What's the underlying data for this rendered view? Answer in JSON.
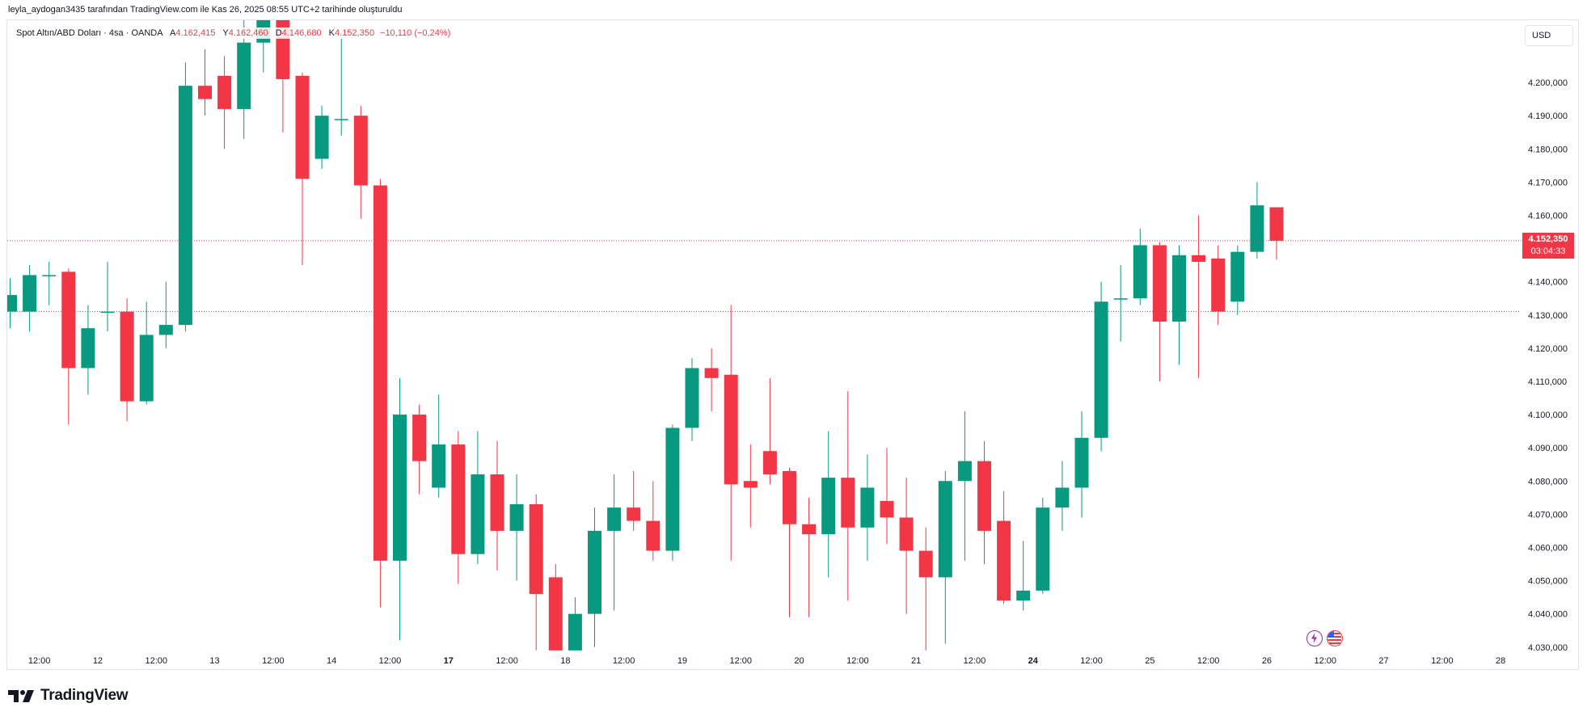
{
  "header": {
    "credit": "leyla_aydogan3435 tarafından TradingView.com ile Kas 26, 2025 08:55 UTC+2 tarihinde oluşturuldu"
  },
  "legend": {
    "symbol": "Spot Altın/ABD Doları · 4sa · OANDA",
    "open_label": "A",
    "open_value": "4.162,415",
    "high_label": "Y",
    "high_value": "4.162,460",
    "low_label": "D",
    "low_value": "4.146,680",
    "close_label": "K",
    "close_value": "4.152,350",
    "change": "−10,110 (−0,24%)"
  },
  "toolbar": {
    "currency": "USD"
  },
  "price_tag": {
    "price": "4.152,350",
    "countdown": "03:04:33"
  },
  "branding": {
    "name": "TradingView"
  },
  "icons": [
    "flash-icon",
    "us-flag-icon"
  ],
  "colors": {
    "up": "#089981",
    "down": "#f23645",
    "last_price_line": "#f23645",
    "ref_line": "#089981",
    "text": "#131722",
    "border": "#e0e3eb"
  },
  "chart_data": {
    "type": "candlestick",
    "series_title": "Spot Altın/ABD Doları · 4sa · OANDA",
    "currency": "USD",
    "ylim": [
      4025,
      4215
    ],
    "y_ticks": [
      4030,
      4040,
      4050,
      4060,
      4070,
      4080,
      4090,
      4100,
      4110,
      4120,
      4130,
      4140,
      4150,
      4160,
      4170,
      4180,
      4190,
      4200
    ],
    "y_tick_labels": [
      "4.030,000",
      "4.040,000",
      "4.050,000",
      "4.060,000",
      "4.070,000",
      "4.080,000",
      "4.090,000",
      "4.100,000",
      "4.110,000",
      "4.120,000",
      "4.130,000",
      "4.140,000",
      "4.150,000",
      "4.160,000",
      "4.170,000",
      "4.180,000",
      "4.190,000",
      "4.200,000"
    ],
    "x_tick_labels": [
      {
        "label": "12:00",
        "index": 1.5,
        "bold": false
      },
      {
        "label": "12",
        "index": 4.5,
        "bold": false
      },
      {
        "label": "12:00",
        "index": 7.5,
        "bold": false
      },
      {
        "label": "13",
        "index": 10.5,
        "bold": false
      },
      {
        "label": "12:00",
        "index": 13.5,
        "bold": false
      },
      {
        "label": "14",
        "index": 16.5,
        "bold": false
      },
      {
        "label": "12:00",
        "index": 19.5,
        "bold": false
      },
      {
        "label": "17",
        "index": 22.5,
        "bold": true
      },
      {
        "label": "12:00",
        "index": 25.5,
        "bold": false
      },
      {
        "label": "18",
        "index": 28.5,
        "bold": false
      },
      {
        "label": "12:00",
        "index": 31.5,
        "bold": false
      },
      {
        "label": "19",
        "index": 34.5,
        "bold": false
      },
      {
        "label": "12:00",
        "index": 37.5,
        "bold": false
      },
      {
        "label": "20",
        "index": 40.5,
        "bold": false
      },
      {
        "label": "12:00",
        "index": 43.5,
        "bold": false
      },
      {
        "label": "21",
        "index": 46.5,
        "bold": false
      },
      {
        "label": "12:00",
        "index": 49.5,
        "bold": false
      },
      {
        "label": "24",
        "index": 52.5,
        "bold": true
      },
      {
        "label": "12:00",
        "index": 55.5,
        "bold": false
      },
      {
        "label": "25",
        "index": 58.5,
        "bold": false
      },
      {
        "label": "12:00",
        "index": 61.5,
        "bold": false
      },
      {
        "label": "26",
        "index": 64.5,
        "bold": false
      },
      {
        "label": "12:00",
        "index": 67.5,
        "bold": false
      },
      {
        "label": "27",
        "index": 70.5,
        "bold": false
      },
      {
        "label": "12:00",
        "index": 73.5,
        "bold": false
      },
      {
        "label": "28",
        "index": 76.5,
        "bold": false
      }
    ],
    "candles": [
      {
        "o": 4131,
        "h": 4141,
        "l": 4126,
        "c": 4136
      },
      {
        "o": 4131,
        "h": 4145,
        "l": 4125,
        "c": 4142
      },
      {
        "o": 4142,
        "h": 4146,
        "l": 4133,
        "c": 4142
      },
      {
        "o": 4143,
        "h": 4144,
        "l": 4097,
        "c": 4114
      },
      {
        "o": 4114,
        "h": 4133,
        "l": 4106,
        "c": 4126
      },
      {
        "o": 4131,
        "h": 4146,
        "l": 4125,
        "c": 4131
      },
      {
        "o": 4131,
        "h": 4135,
        "l": 4098,
        "c": 4104
      },
      {
        "o": 4104,
        "h": 4134,
        "l": 4103,
        "c": 4124
      },
      {
        "o": 4124,
        "h": 4140,
        "l": 4120,
        "c": 4127
      },
      {
        "o": 4127,
        "h": 4206,
        "l": 4125,
        "c": 4199
      },
      {
        "o": 4199,
        "h": 4210,
        "l": 4190,
        "c": 4195
      },
      {
        "o": 4202,
        "h": 4208,
        "l": 4180,
        "c": 4192
      },
      {
        "o": 4192,
        "h": 4222,
        "l": 4183,
        "c": 4212
      },
      {
        "o": 4212,
        "h": 4225,
        "l": 4203,
        "c": 4220
      },
      {
        "o": 4221,
        "h": 4224,
        "l": 4185,
        "c": 4201
      },
      {
        "o": 4202,
        "h": 4203,
        "l": 4145,
        "c": 4171
      },
      {
        "o": 4177,
        "h": 4193,
        "l": 4174,
        "c": 4190
      },
      {
        "o": 4189,
        "h": 4214,
        "l": 4184,
        "c": 4189
      },
      {
        "o": 4190,
        "h": 4193,
        "l": 4159,
        "c": 4169
      },
      {
        "o": 4169,
        "h": 4171,
        "l": 4042,
        "c": 4056
      },
      {
        "o": 4056,
        "h": 4111,
        "l": 4032,
        "c": 4100
      },
      {
        "o": 4100,
        "h": 4103,
        "l": 4076,
        "c": 4086
      },
      {
        "o": 4078,
        "h": 4106,
        "l": 4075,
        "c": 4091
      },
      {
        "o": 4091,
        "h": 4095,
        "l": 4049,
        "c": 4058
      },
      {
        "o": 4058,
        "h": 4095,
        "l": 4055,
        "c": 4082
      },
      {
        "o": 4082,
        "h": 4092,
        "l": 4053,
        "c": 4065
      },
      {
        "o": 4065,
        "h": 4082,
        "l": 4050,
        "c": 4073
      },
      {
        "o": 4073,
        "h": 4076,
        "l": 4029,
        "c": 4046
      },
      {
        "o": 4051,
        "h": 4055,
        "l": 4025,
        "c": 4029
      },
      {
        "o": 4029,
        "h": 4045,
        "l": 4029,
        "c": 4040
      },
      {
        "o": 4040,
        "h": 4072,
        "l": 4030,
        "c": 4065
      },
      {
        "o": 4065,
        "h": 4082,
        "l": 4041,
        "c": 4072
      },
      {
        "o": 4072,
        "h": 4083,
        "l": 4065,
        "c": 4068
      },
      {
        "o": 4068,
        "h": 4080,
        "l": 4056,
        "c": 4059
      },
      {
        "o": 4059,
        "h": 4097,
        "l": 4056,
        "c": 4096
      },
      {
        "o": 4096,
        "h": 4117,
        "l": 4092,
        "c": 4114
      },
      {
        "o": 4114,
        "h": 4120,
        "l": 4101,
        "c": 4111
      },
      {
        "o": 4112,
        "h": 4133,
        "l": 4056,
        "c": 4079
      },
      {
        "o": 4080,
        "h": 4091,
        "l": 4066,
        "c": 4078
      },
      {
        "o": 4089,
        "h": 4111,
        "l": 4079,
        "c": 4082
      },
      {
        "o": 4083,
        "h": 4084,
        "l": 4039,
        "c": 4067
      },
      {
        "o": 4067,
        "h": 4075,
        "l": 4039,
        "c": 4064
      },
      {
        "o": 4064,
        "h": 4095,
        "l": 4051,
        "c": 4081
      },
      {
        "o": 4081,
        "h": 4107,
        "l": 4044,
        "c": 4066
      },
      {
        "o": 4066,
        "h": 4088,
        "l": 4056,
        "c": 4078
      },
      {
        "o": 4074,
        "h": 4090,
        "l": 4061,
        "c": 4069
      },
      {
        "o": 4069,
        "h": 4081,
        "l": 4040,
        "c": 4059
      },
      {
        "o": 4059,
        "h": 4066,
        "l": 4029,
        "c": 4051
      },
      {
        "o": 4051,
        "h": 4083,
        "l": 4031,
        "c": 4080
      },
      {
        "o": 4080,
        "h": 4101,
        "l": 4056,
        "c": 4086
      },
      {
        "o": 4086,
        "h": 4092,
        "l": 4055,
        "c": 4065
      },
      {
        "o": 4068,
        "h": 4077,
        "l": 4043,
        "c": 4044
      },
      {
        "o": 4044,
        "h": 4062,
        "l": 4041,
        "c": 4047
      },
      {
        "o": 4047,
        "h": 4075,
        "l": 4046,
        "c": 4072
      },
      {
        "o": 4072,
        "h": 4086,
        "l": 4065,
        "c": 4078
      },
      {
        "o": 4078,
        "h": 4101,
        "l": 4069,
        "c": 4093
      },
      {
        "o": 4093,
        "h": 4140,
        "l": 4089,
        "c": 4134
      },
      {
        "o": 4135,
        "h": 4145,
        "l": 4122,
        "c": 4135
      },
      {
        "o": 4135,
        "h": 4156,
        "l": 4133,
        "c": 4151
      },
      {
        "o": 4151,
        "h": 4152,
        "l": 4110,
        "c": 4128
      },
      {
        "o": 4128,
        "h": 4151,
        "l": 4115,
        "c": 4148
      },
      {
        "o": 4148,
        "h": 4160,
        "l": 4111,
        "c": 4146
      },
      {
        "o": 4147,
        "h": 4151,
        "l": 4127,
        "c": 4131
      },
      {
        "o": 4134,
        "h": 4151,
        "l": 4130,
        "c": 4149
      },
      {
        "o": 4149,
        "h": 4170,
        "l": 4147,
        "c": 4163
      },
      {
        "o": 4162.415,
        "h": 4162.46,
        "l": 4146.68,
        "c": 4152.35
      }
    ],
    "last_price": 4152.35,
    "reference_line": 4131
  }
}
